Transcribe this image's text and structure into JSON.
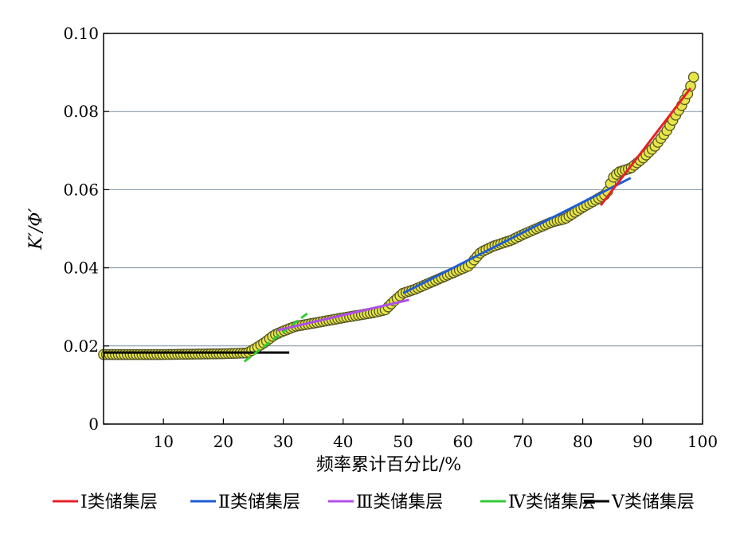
{
  "chart_data": {
    "type": "scatter",
    "title": "",
    "xlabel": "频率累计百分比/%",
    "ylabel": "K′/Φ′",
    "xlim": [
      0,
      100
    ],
    "ylim": [
      0,
      0.1
    ],
    "xticks": [
      10,
      20,
      30,
      40,
      50,
      60,
      70,
      80,
      90,
      100
    ],
    "xtick_labels": [
      "10",
      "20",
      "30",
      "40",
      "50",
      "60",
      "70",
      "80",
      "90",
      "100"
    ],
    "yticks": [
      0,
      0.02,
      0.04,
      0.06,
      0.08,
      0.1
    ],
    "ytick_labels": [
      "0",
      "0.02",
      "0.04",
      "0.06",
      "0.08",
      "0.10"
    ],
    "grid": "horizontal",
    "legend_position": "bottom",
    "marker_color": "#e6e64a",
    "marker_edge": "#555522",
    "curve_knots": [
      [
        0,
        0.0178
      ],
      [
        10,
        0.0178
      ],
      [
        20,
        0.018
      ],
      [
        24,
        0.0182
      ],
      [
        25.5,
        0.0195
      ],
      [
        27,
        0.021
      ],
      [
        28.5,
        0.0228
      ],
      [
        30,
        0.0238
      ],
      [
        32,
        0.025
      ],
      [
        35,
        0.0258
      ],
      [
        40,
        0.0272
      ],
      [
        45,
        0.0285
      ],
      [
        47,
        0.0292
      ],
      [
        48.5,
        0.0315
      ],
      [
        50,
        0.0335
      ],
      [
        52,
        0.0345
      ],
      [
        55,
        0.0365
      ],
      [
        58,
        0.0385
      ],
      [
        61,
        0.0405
      ],
      [
        63,
        0.044
      ],
      [
        65,
        0.0455
      ],
      [
        68,
        0.047
      ],
      [
        70,
        0.0485
      ],
      [
        73,
        0.0505
      ],
      [
        75,
        0.0518
      ],
      [
        77,
        0.0525
      ],
      [
        78.5,
        0.054
      ],
      [
        80,
        0.0555
      ],
      [
        82,
        0.0572
      ],
      [
        84,
        0.059
      ],
      [
        85,
        0.063
      ],
      [
        86,
        0.0645
      ],
      [
        88,
        0.0655
      ],
      [
        90,
        0.068
      ],
      [
        92,
        0.071
      ],
      [
        94,
        0.075
      ],
      [
        95.5,
        0.079
      ],
      [
        96.5,
        0.0815
      ],
      [
        97.5,
        0.0845
      ],
      [
        98,
        0.0865
      ],
      [
        98.5,
        0.0888
      ]
    ],
    "point_count": 200,
    "series": [
      {
        "name": "Ⅰ类储集层",
        "color": "#e8202a",
        "line": [
          [
            83,
            0.056
          ],
          [
            98,
            0.086
          ]
        ]
      },
      {
        "name": "Ⅱ类储集层",
        "color": "#1f5bd6",
        "line": [
          [
            50,
            0.0335
          ],
          [
            88,
            0.063
          ]
        ]
      },
      {
        "name": "Ⅲ类储集层",
        "color": "#b04fe8",
        "line": [
          [
            29,
            0.024
          ],
          [
            51,
            0.0318
          ]
        ]
      },
      {
        "name": "Ⅳ类储集层",
        "color": "#33cc33",
        "line": [
          [
            23.5,
            0.016
          ],
          [
            34,
            0.0283
          ]
        ],
        "dashed": true
      },
      {
        "name": "Ⅴ类储集层",
        "color": "#000000",
        "line": [
          [
            0,
            0.0183
          ],
          [
            31,
            0.0183
          ]
        ]
      }
    ]
  }
}
